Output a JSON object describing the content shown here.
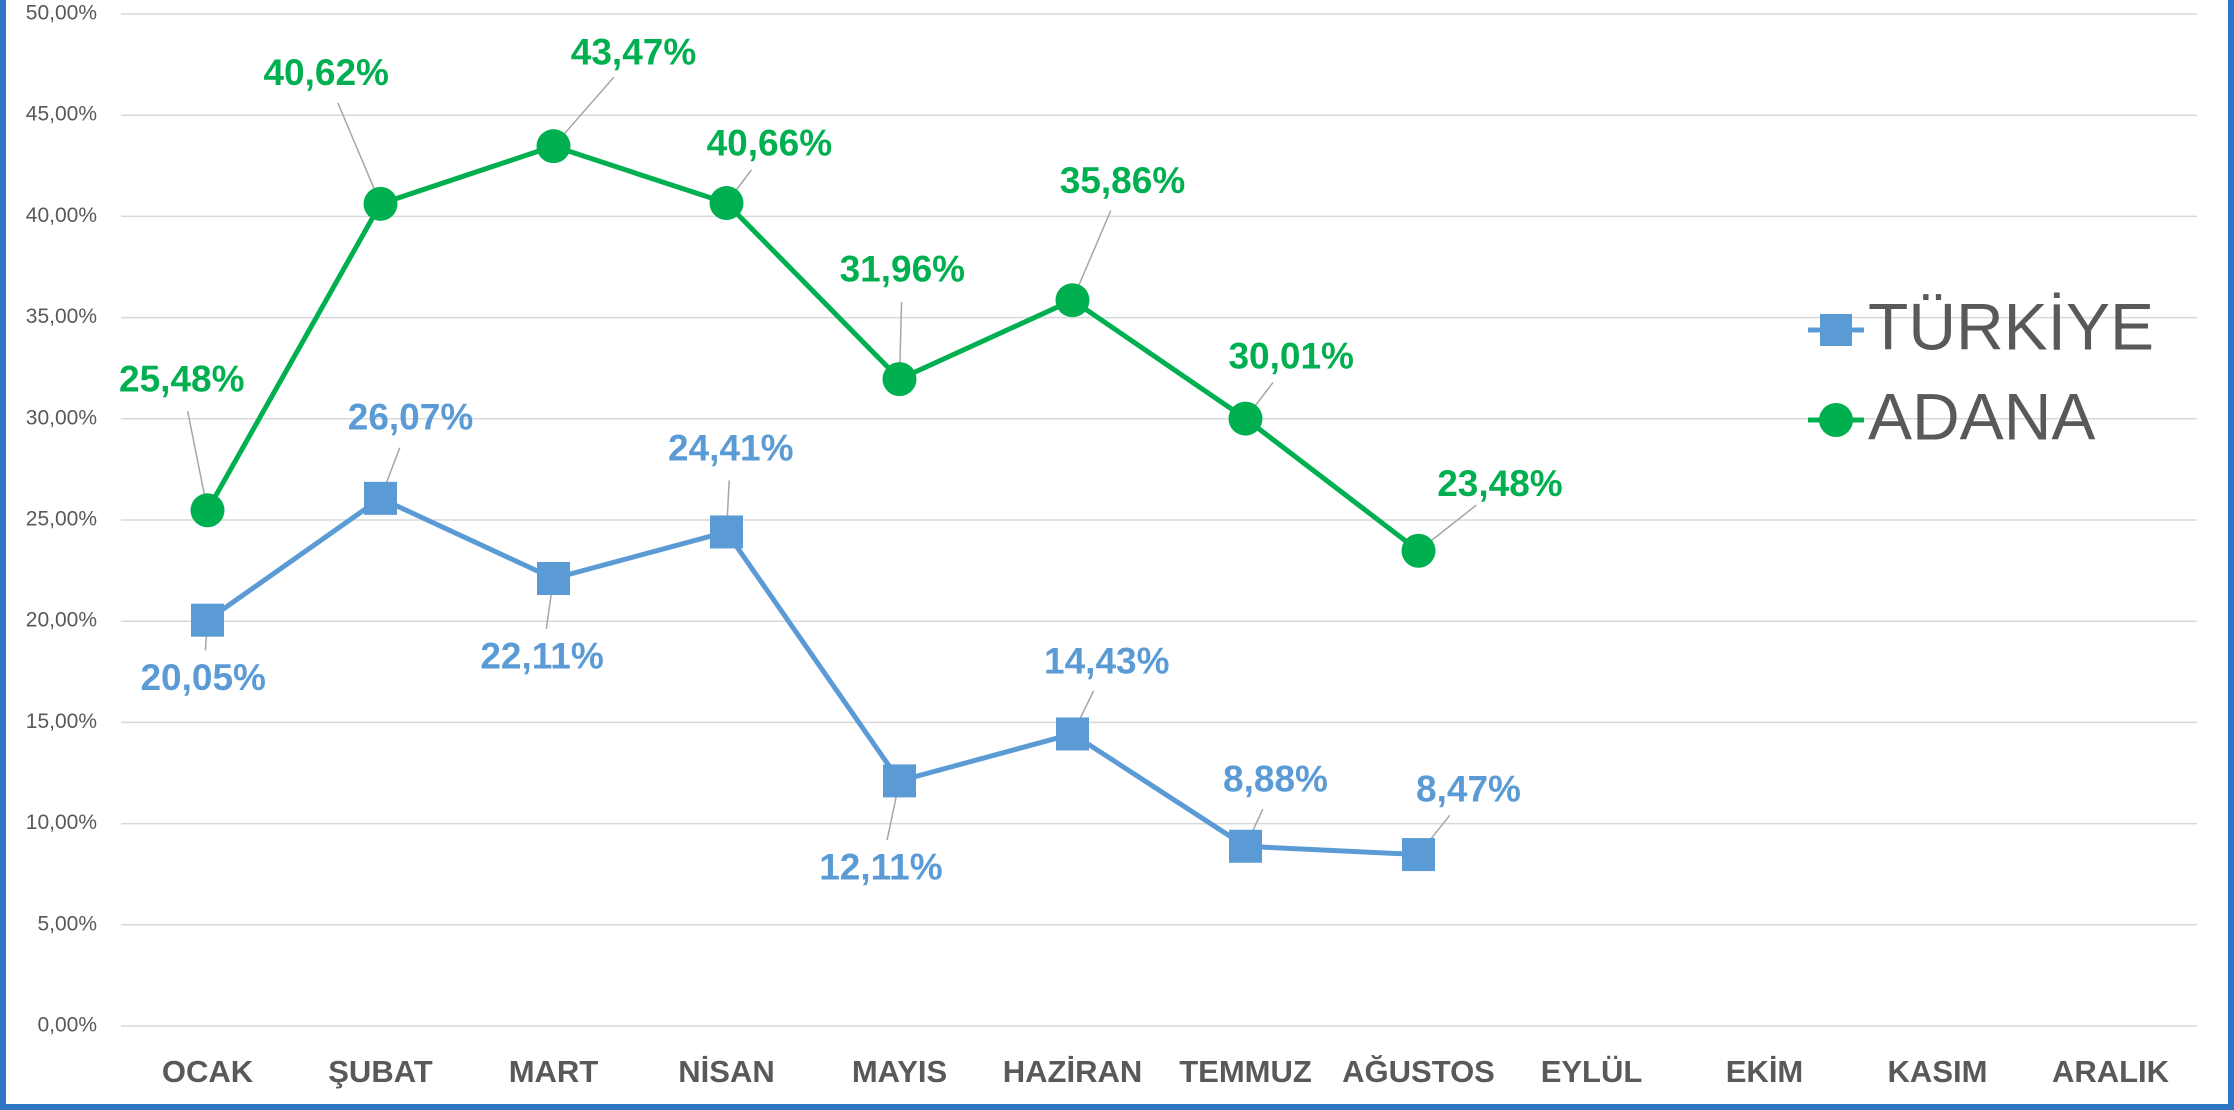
{
  "chart_data": {
    "type": "line",
    "categories": [
      "OCAK",
      "ŞUBAT",
      "MART",
      "NİSAN",
      "MAYIS",
      "HAZİRAN",
      "TEMMUZ",
      "AĞUSTOS",
      "EYLÜL",
      "EKİM",
      "KASIM",
      "ARALIK"
    ],
    "series": [
      {
        "name": "TÜRKİYE",
        "color": "#5b9bd5",
        "marker": "square",
        "values": [
          20.05,
          26.07,
          22.11,
          24.41,
          12.11,
          14.43,
          8.88,
          8.47,
          null,
          null,
          null,
          null
        ],
        "value_labels": [
          "20,05%",
          "26,07%",
          "22,11%",
          "24,41%",
          "12,11%",
          "14,43%",
          "8,88%",
          "8,47%",
          null,
          null,
          null,
          null
        ]
      },
      {
        "name": "ADANA",
        "color": "#00b050",
        "marker": "circle",
        "values": [
          25.48,
          40.62,
          43.47,
          40.66,
          31.96,
          35.86,
          30.01,
          23.48,
          null,
          null,
          null,
          null
        ],
        "value_labels": [
          "25,48%",
          "40,62%",
          "43,47%",
          "40,66%",
          "31,96%",
          "35,86%",
          "30,01%",
          "23,48%",
          null,
          null,
          null,
          null
        ]
      }
    ],
    "ylim": [
      0,
      50
    ],
    "yticks": [
      {
        "value": 0,
        "label": "0,00%"
      },
      {
        "value": 5,
        "label": "5,00%"
      },
      {
        "value": 10,
        "label": "10,00%"
      },
      {
        "value": 15,
        "label": "15,00%"
      },
      {
        "value": 20,
        "label": "20,00%"
      },
      {
        "value": 25,
        "label": "25,00%"
      },
      {
        "value": 30,
        "label": "30,00%"
      },
      {
        "value": 35,
        "label": "35,00%"
      },
      {
        "value": 40,
        "label": "40,00%"
      },
      {
        "value": 45,
        "label": "45,00%"
      },
      {
        "value": 50,
        "label": "50,00%"
      }
    ],
    "grid": true,
    "legend": "right"
  }
}
